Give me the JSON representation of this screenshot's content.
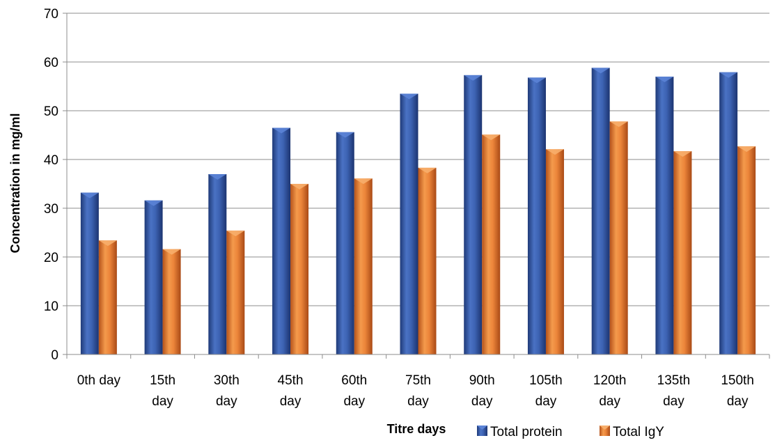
{
  "chart_data": {
    "type": "bar",
    "xlabel": "Titre days",
    "ylabel": "Concentration in mg/ml",
    "ylim": [
      0,
      70
    ],
    "yticks": [
      0,
      10,
      20,
      30,
      40,
      50,
      60,
      70
    ],
    "grid": true,
    "legend_position": "bottom-right",
    "categories": [
      [
        "0th day"
      ],
      [
        "15th",
        "day"
      ],
      [
        "30th",
        "day"
      ],
      [
        "45th",
        "day"
      ],
      [
        "60th",
        "day"
      ],
      [
        "75th",
        "day"
      ],
      [
        "90th",
        "day"
      ],
      [
        "105th",
        "day"
      ],
      [
        "120th",
        "day"
      ],
      [
        "135th",
        "day"
      ],
      [
        "150th",
        "day"
      ]
    ],
    "series": [
      {
        "name": "Total protein",
        "color": "#3a5da8",
        "values": [
          33.2,
          31.6,
          37.0,
          46.5,
          45.6,
          53.5,
          57.3,
          56.8,
          58.8,
          57.0,
          57.9
        ]
      },
      {
        "name": "Total IgY",
        "color": "#e9782e",
        "values": [
          23.4,
          21.6,
          25.4,
          35.0,
          36.1,
          38.3,
          45.1,
          42.1,
          47.8,
          41.7,
          42.7
        ]
      }
    ]
  }
}
